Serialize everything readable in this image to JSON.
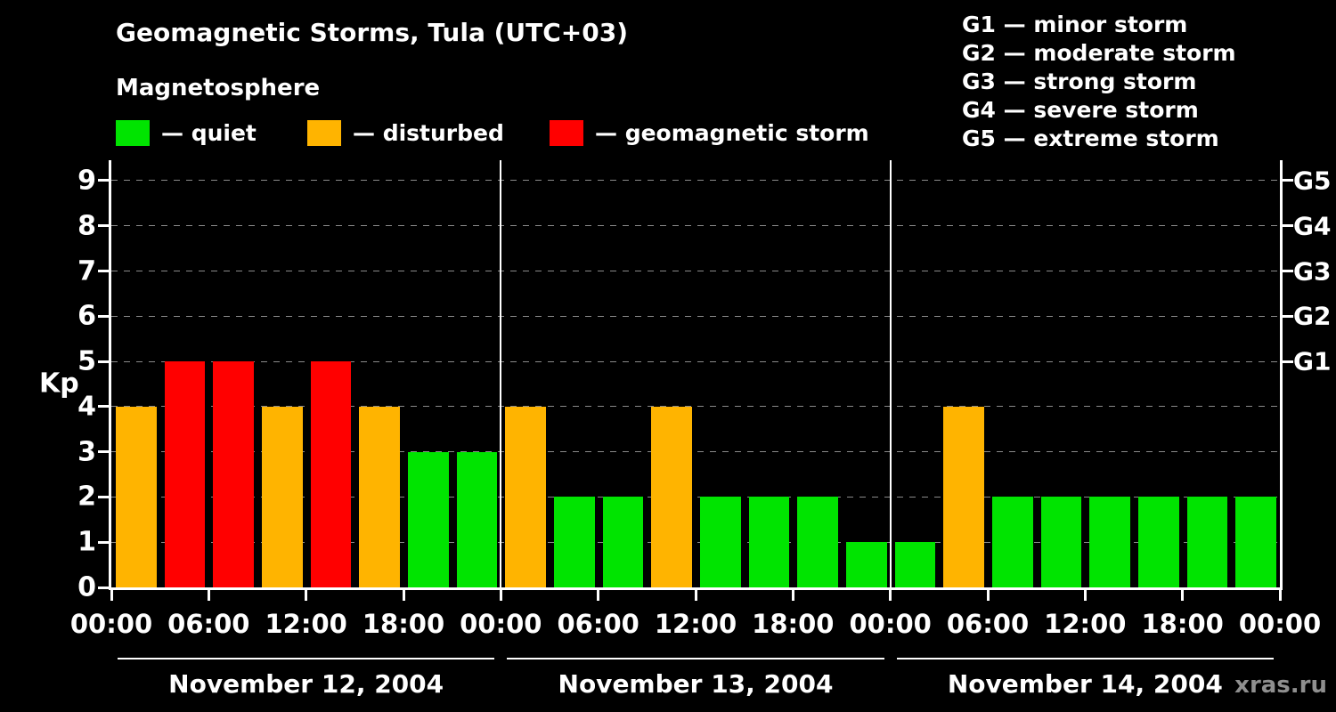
{
  "header": {
    "title": "Geomagnetic Storms, Tula (UTC+03)",
    "subtitle": "Magnetosphere"
  },
  "legend": [
    {
      "key": "quiet",
      "label": "— quiet",
      "color": "#00e400"
    },
    {
      "key": "disturbed",
      "label": "— disturbed",
      "color": "#ffb400"
    },
    {
      "key": "storm",
      "label": "— geomagnetic storm",
      "color": "#ff0000"
    }
  ],
  "g_scale_legend": [
    "G1 — minor storm",
    "G2 — moderate storm",
    "G3 — strong storm",
    "G4 — severe storm",
    "G5 — extreme storm"
  ],
  "watermark": "xras.ru",
  "chart_data": {
    "type": "bar",
    "title": "Geomagnetic Storms, Tula (UTC+03)",
    "ylabel": "Kp",
    "ylim": [
      0,
      9
    ],
    "y_ticks": [
      0,
      1,
      2,
      3,
      4,
      5,
      6,
      7,
      8,
      9
    ],
    "grid": "dashed horizontal gridlines at each Kp level",
    "legend_position": "top",
    "bin_hours": 3,
    "x_tick_labels_per_day": [
      "00:00",
      "06:00",
      "12:00",
      "18:00"
    ],
    "x_axis_end_label": "00:00",
    "right_axis_labels": [
      {
        "kp": 5,
        "label": "G1"
      },
      {
        "kp": 6,
        "label": "G2"
      },
      {
        "kp": 7,
        "label": "G3"
      },
      {
        "kp": 8,
        "label": "G4"
      },
      {
        "kp": 9,
        "label": "G5"
      }
    ],
    "colors": {
      "quiet": "#00e400",
      "disturbed": "#ffb400",
      "storm": "#ff0000"
    },
    "days": [
      {
        "date": "November 12, 2004",
        "kp": [
          4,
          5,
          5,
          4,
          5,
          4,
          3,
          3
        ],
        "status": [
          "disturbed",
          "storm",
          "storm",
          "disturbed",
          "storm",
          "disturbed",
          "quiet",
          "quiet"
        ]
      },
      {
        "date": "November 13, 2004",
        "kp": [
          4,
          2,
          2,
          4,
          2,
          2,
          2,
          1
        ],
        "status": [
          "disturbed",
          "quiet",
          "quiet",
          "disturbed",
          "quiet",
          "quiet",
          "quiet",
          "quiet"
        ]
      },
      {
        "date": "November 14, 2004",
        "kp": [
          1,
          4,
          2,
          2,
          2,
          2,
          2,
          2
        ],
        "status": [
          "quiet",
          "disturbed",
          "quiet",
          "quiet",
          "quiet",
          "quiet",
          "quiet",
          "quiet"
        ]
      }
    ]
  }
}
